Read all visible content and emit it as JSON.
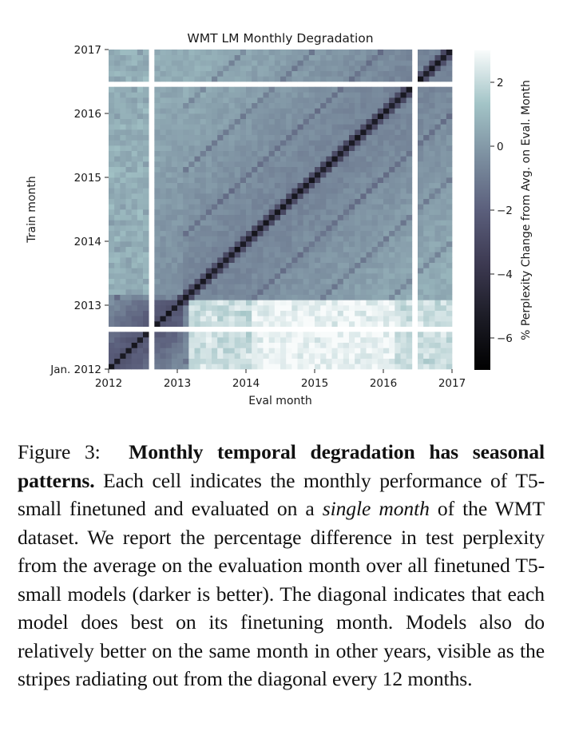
{
  "chart_data": {
    "type": "heatmap",
    "title": "WMT LM Monthly Degradation",
    "xlabel": "Eval month",
    "ylabel": "Train month",
    "x_ticks": [
      "2012",
      "2013",
      "2014",
      "2015",
      "2016",
      "2017"
    ],
    "y_ticks": [
      "Jan. 2012",
      "2013",
      "2014",
      "2015",
      "2016",
      "2017"
    ],
    "x_range": [
      "2012-01",
      "2016-12"
    ],
    "y_range": [
      "2012-01",
      "2016-12"
    ],
    "months": 60,
    "missing_months": [
      "2012-08",
      "2016-06"
    ],
    "colorbar": {
      "label": "% Perplexity Change from Avg. on Eval. Month",
      "ticks": [
        "2",
        "0",
        "−2",
        "−4",
        "−6"
      ],
      "tick_values": [
        2,
        0,
        -2,
        -4,
        -6
      ],
      "range": [
        -7,
        3
      ],
      "colormap": "bone",
      "stops": [
        "#000000",
        "#1c1c26",
        "#3d3a52",
        "#5b5f7c",
        "#7c8fa0",
        "#a3c4c7",
        "#f8fbfb"
      ]
    },
    "value_model": {
      "diagonal": -5.5,
      "diagonal_adjacent": -3.5,
      "seasonal_stripe_12mo": -1.0,
      "typical_offdiag_near": -0.8,
      "far_from_diagonal": 0.5,
      "train_2012_eval_later": 2.5,
      "train_late_eval_2012": 1.0,
      "description": "Dark diagonal (best on finetuning month), lighter further from diagonal, faint stripes every 12 months; models trained in 2012 perform worst on post-2013 months (lightest)."
    }
  },
  "caption": {
    "label": "Figure 3:",
    "bold": "Monthly temporal degradation has seasonal patterns.",
    "text1": " Each cell indicates the monthly performance of T5-small finetuned and evaluated on a ",
    "italic": "single month",
    "text2": " of the WMT dataset.  We report the percentage difference in test perplexity from the average on the evaluation month over all finetuned T5-small models (darker is better). The diagonal indicates that each model does best on its finetuning month. Models also do relatively better on the same month in other years, visible as the stripes radiating out from the diagonal every 12 months."
  }
}
